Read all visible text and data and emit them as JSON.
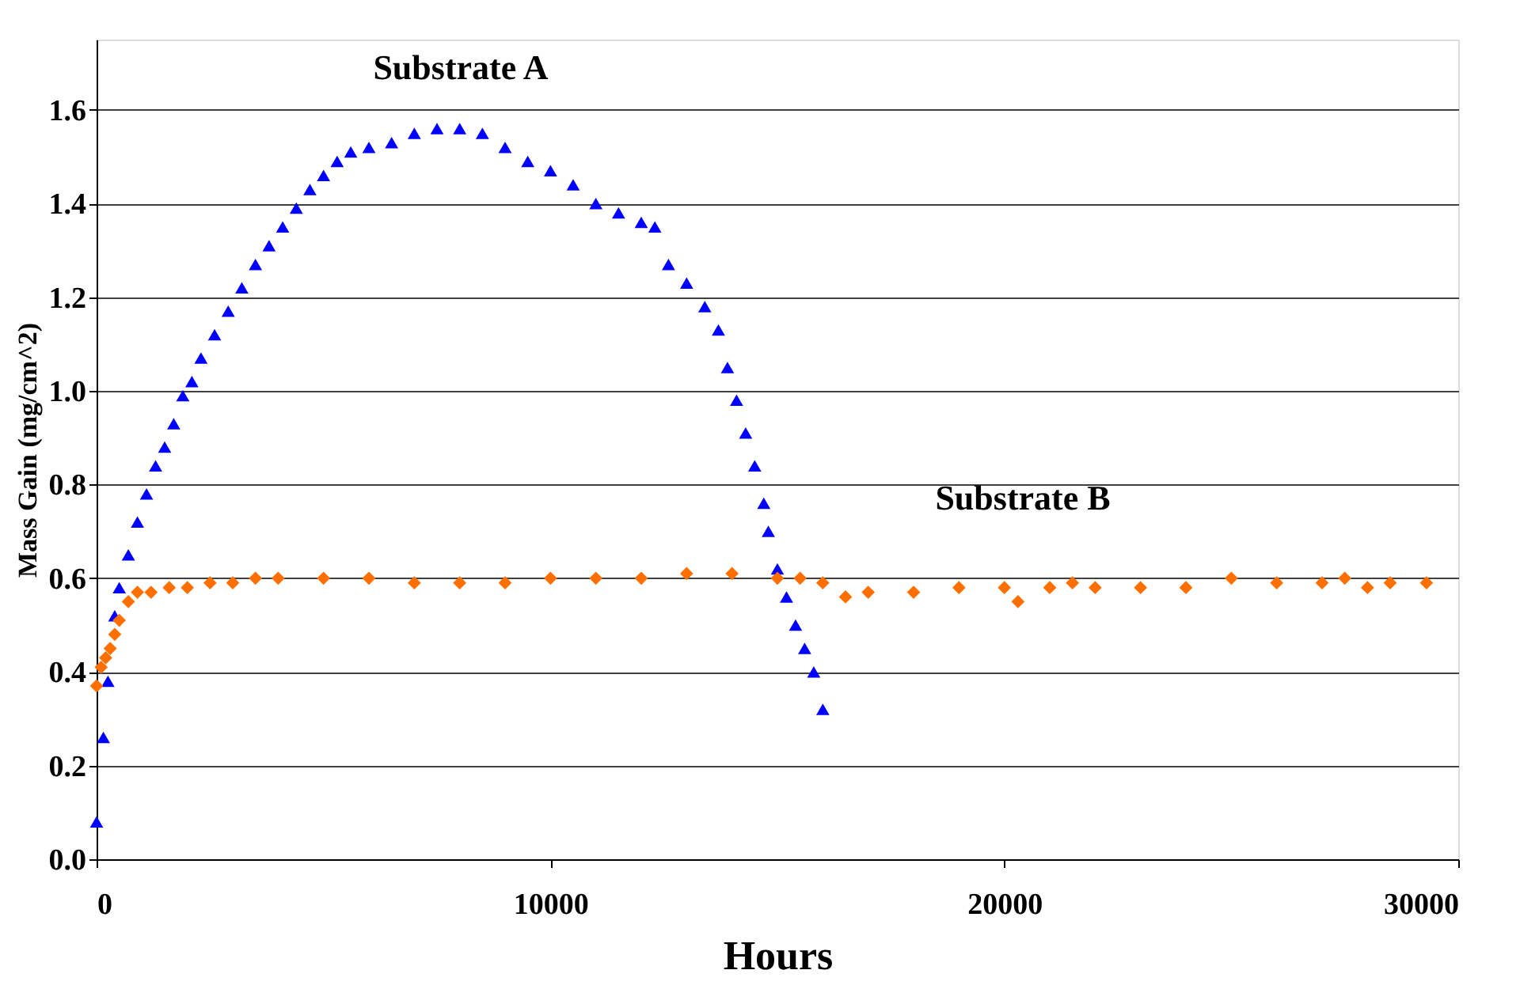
{
  "chart_data": {
    "type": "scatter",
    "xlabel": "Hours",
    "ylabel": "Mass Gain (mg/cm^2)",
    "xlim": [
      0,
      30000
    ],
    "xticks": [
      0,
      10000,
      20000,
      30000
    ],
    "ylim": [
      0,
      1.75
    ],
    "yticks": [
      {
        "value": 0,
        "label": "0.0"
      },
      0.2,
      0.4,
      0.6,
      0.8,
      {
        "value": 1,
        "label": "1.0"
      },
      1.2,
      1.4,
      1.6
    ],
    "grid": "y",
    "annotations": [
      "Substrate A",
      "Substrate B"
    ],
    "series": [
      {
        "color": "#0000ff",
        "marker": "triangle",
        "x": [
          0,
          150,
          250,
          400,
          500,
          700,
          900,
          1100,
          1300,
          1500,
          1700,
          1900,
          2100,
          2300,
          2600,
          2900,
          3200,
          3500,
          3800,
          4100,
          4400,
          4700,
          5000,
          5300,
          5600,
          6000,
          6500,
          7000,
          7500,
          8000,
          8500,
          9000,
          9500,
          10000,
          10500,
          11000,
          11500,
          12000,
          12300,
          12600,
          13000,
          13400,
          13700,
          13900,
          14100,
          14300,
          14500,
          14700,
          14800,
          15000,
          15200,
          15400,
          15600,
          15800,
          16000
        ],
        "values": [
          0.08,
          0.26,
          0.38,
          0.52,
          0.58,
          0.65,
          0.72,
          0.78,
          0.84,
          0.88,
          0.93,
          0.99,
          1.02,
          1.07,
          1.12,
          1.17,
          1.22,
          1.27,
          1.31,
          1.35,
          1.39,
          1.43,
          1.46,
          1.49,
          1.51,
          1.52,
          1.53,
          1.55,
          1.56,
          1.56,
          1.55,
          1.52,
          1.49,
          1.47,
          1.44,
          1.4,
          1.38,
          1.36,
          1.35,
          1.27,
          1.23,
          1.18,
          1.13,
          1.05,
          0.98,
          0.91,
          0.84,
          0.76,
          0.7,
          0.62,
          0.56,
          0.5,
          0.45,
          0.4,
          0.32
        ]
      },
      {
        "color": "#ff6f00",
        "marker": "diamond",
        "x": [
          0,
          100,
          200,
          300,
          400,
          500,
          700,
          900,
          1200,
          1600,
          2000,
          2500,
          3000,
          3500,
          4000,
          5000,
          6000,
          7000,
          8000,
          9000,
          10000,
          11000,
          12000,
          13000,
          14000,
          15000,
          15500,
          16000,
          16500,
          17000,
          18000,
          19000,
          20000,
          20300,
          21000,
          21500,
          22000,
          23000,
          24000,
          25000,
          26000,
          27000,
          27500,
          28000,
          28500,
          29300
        ],
        "values": [
          0.37,
          0.41,
          0.43,
          0.45,
          0.48,
          0.51,
          0.55,
          0.57,
          0.57,
          0.58,
          0.58,
          0.59,
          0.59,
          0.6,
          0.6,
          0.6,
          0.6,
          0.59,
          0.59,
          0.59,
          0.6,
          0.6,
          0.6,
          0.61,
          0.61,
          0.6,
          0.6,
          0.59,
          0.56,
          0.57,
          0.57,
          0.58,
          0.58,
          0.55,
          0.58,
          0.59,
          0.58,
          0.58,
          0.58,
          0.6,
          0.59,
          0.59,
          0.6,
          0.58,
          0.59,
          0.59
        ]
      }
    ]
  }
}
